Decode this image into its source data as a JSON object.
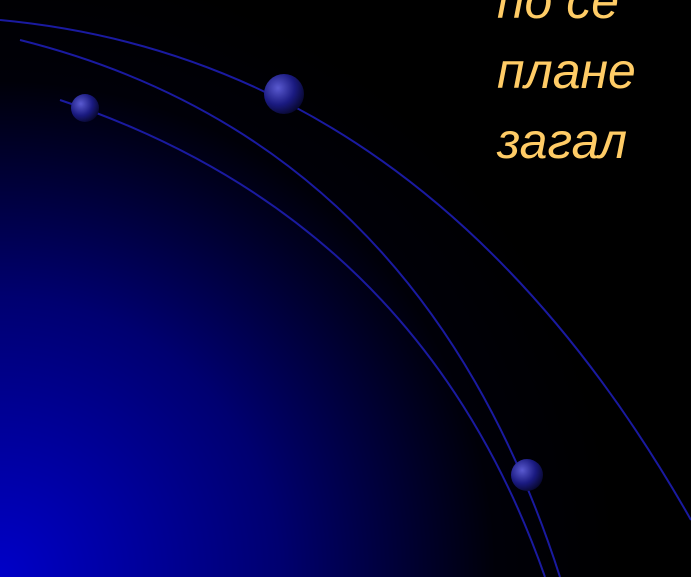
{
  "slide": {
    "text_lines": [
      "по   се",
      "плане",
      "загал"
    ]
  }
}
